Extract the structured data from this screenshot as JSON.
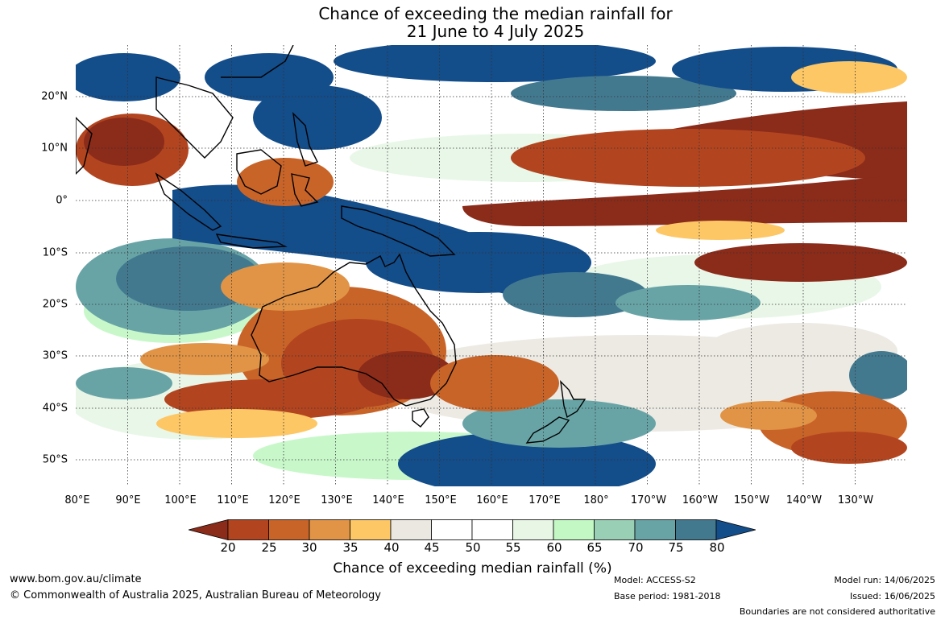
{
  "title_line1": "Chance of exceeding the median rainfall for",
  "title_line2": "21 June to 4 July 2025",
  "map": {
    "lon_labels": [
      "80°E",
      "90°E",
      "100°E",
      "110°E",
      "120°E",
      "130°E",
      "140°E",
      "150°E",
      "160°E",
      "170°E",
      "180°",
      "170°W",
      "160°W",
      "150°W",
      "140°W",
      "130°W"
    ],
    "lat_labels": [
      "20°N",
      "10°N",
      "0°",
      "10°S",
      "20°S",
      "30°S",
      "40°S",
      "50°S"
    ]
  },
  "colorbar": {
    "labels": [
      "20",
      "25",
      "30",
      "35",
      "40",
      "45",
      "50",
      "55",
      "60",
      "65",
      "70",
      "75",
      "80"
    ],
    "colors": [
      "#8b2b1a",
      "#b2451f",
      "#c96429",
      "#e19446",
      "#fdc765",
      "#ebe8e1",
      "#ffffff",
      "#ffffff",
      "#e7f6e5",
      "#c3f8c5",
      "#99cfb5",
      "#68a4a6",
      "#43798f",
      "#134d8a"
    ],
    "title": "Chance of exceeding median rainfall (%)"
  },
  "footer": {
    "url": "www.bom.gov.au/climate",
    "copyright": "© Commonwealth of Australia 2025, Australian Bureau of Meteorology",
    "model": "Model: ACCESS-S2",
    "base_period": "Base period: 1981-2018",
    "model_run": "Model run: 14/06/2025",
    "issued": "Issued: 16/06/2025",
    "disclaimer": "Boundaries are not considered authoritative"
  }
}
